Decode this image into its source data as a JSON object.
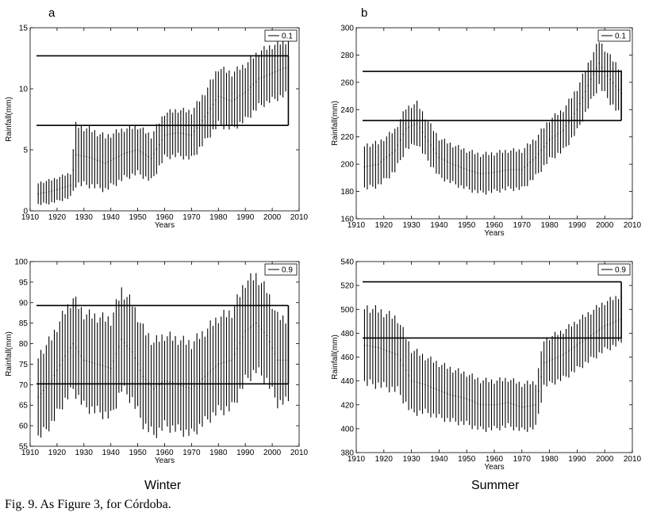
{
  "figure": {
    "letters": [
      "a",
      "b"
    ],
    "seasons": [
      "Winter",
      "Summer"
    ],
    "caption": "Fig. 9. As Figure 3, for Córdoba."
  },
  "chart_data": [
    {
      "type": "line",
      "panel": "winter-0.1",
      "xlabel": "Years",
      "ylabel": "Rainfall(mm)",
      "xlim": [
        1910,
        2010
      ],
      "ylim": [
        0,
        15
      ],
      "xticks": [
        1910,
        1920,
        1930,
        1940,
        1950,
        1960,
        1970,
        1980,
        1990,
        2000,
        2010
      ],
      "yticks": [
        0,
        5,
        10,
        15
      ],
      "legend": "0.1",
      "legend_position": "top-right",
      "band": {
        "lower": 7.0,
        "upper": 12.7,
        "x_end": 2006
      },
      "years": [
        1913,
        2006
      ],
      "center_knots": [
        [
          1913,
          1.4
        ],
        [
          1918,
          1.6
        ],
        [
          1925,
          2.1
        ],
        [
          1927,
          4.6
        ],
        [
          1932,
          4.4
        ],
        [
          1938,
          3.9
        ],
        [
          1945,
          4.7
        ],
        [
          1950,
          5.0
        ],
        [
          1955,
          4.3
        ],
        [
          1960,
          6.2
        ],
        [
          1965,
          6.4
        ],
        [
          1970,
          6.2
        ],
        [
          1975,
          7.7
        ],
        [
          1980,
          9.4
        ],
        [
          1985,
          9.0
        ],
        [
          1990,
          9.7
        ],
        [
          1995,
          10.8
        ],
        [
          2000,
          11.3
        ],
        [
          2006,
          11.8
        ]
      ],
      "halfwidth_knots": [
        [
          1913,
          0.9
        ],
        [
          1925,
          1.0
        ],
        [
          1927,
          2.4
        ],
        [
          1950,
          1.9
        ],
        [
          1960,
          1.8
        ],
        [
          1975,
          2.0
        ],
        [
          1980,
          2.3
        ],
        [
          2006,
          2.2
        ]
      ]
    },
    {
      "type": "line",
      "panel": "summer-0.1",
      "xlabel": "Years",
      "ylabel": "Rainfall(mm)",
      "xlim": [
        1910,
        2010
      ],
      "ylim": [
        160,
        300
      ],
      "xticks": [
        1910,
        1920,
        1930,
        1940,
        1950,
        1960,
        1970,
        1980,
        1990,
        2000,
        2010
      ],
      "yticks": [
        160,
        180,
        200,
        220,
        240,
        260,
        280,
        300
      ],
      "legend": "0.1",
      "legend_position": "top-right",
      "band": {
        "lower": 232,
        "upper": 268,
        "x_end": 2006
      },
      "years": [
        1913,
        2006
      ],
      "center_knots": [
        [
          1913,
          198
        ],
        [
          1918,
          200
        ],
        [
          1924,
          210
        ],
        [
          1928,
          226
        ],
        [
          1932,
          230
        ],
        [
          1935,
          220
        ],
        [
          1940,
          205
        ],
        [
          1945,
          200
        ],
        [
          1950,
          196
        ],
        [
          1955,
          193
        ],
        [
          1960,
          194
        ],
        [
          1965,
          196
        ],
        [
          1970,
          196
        ],
        [
          1975,
          205
        ],
        [
          1980,
          218
        ],
        [
          1985,
          225
        ],
        [
          1990,
          240
        ],
        [
          1995,
          262
        ],
        [
          1998,
          274
        ],
        [
          2002,
          262
        ],
        [
          2006,
          252
        ]
      ],
      "halfwidth_knots": [
        [
          1913,
          16
        ],
        [
          1925,
          15
        ],
        [
          1930,
          15
        ],
        [
          1940,
          14
        ],
        [
          1960,
          14
        ],
        [
          1975,
          14
        ],
        [
          1985,
          15
        ],
        [
          1995,
          16
        ],
        [
          2006,
          17
        ]
      ]
    },
    {
      "type": "line",
      "panel": "winter-0.9",
      "xlabel": "Years",
      "ylabel": "Rainfall(mm)",
      "xlim": [
        1910,
        2010
      ],
      "ylim": [
        55,
        100
      ],
      "xticks": [
        1910,
        1920,
        1930,
        1940,
        1950,
        1960,
        1970,
        1980,
        1990,
        2000,
        2010
      ],
      "yticks": [
        55,
        60,
        65,
        70,
        75,
        80,
        85,
        90,
        95,
        100
      ],
      "legend": "0.9",
      "legend_position": "top-right",
      "band": {
        "lower": 70.2,
        "upper": 89.3,
        "x_end": 2006
      },
      "years": [
        1913,
        2006
      ],
      "center_knots": [
        [
          1913,
          67
        ],
        [
          1918,
          71
        ],
        [
          1922,
          76
        ],
        [
          1926,
          80
        ],
        [
          1930,
          76
        ],
        [
          1935,
          75
        ],
        [
          1940,
          74
        ],
        [
          1944,
          81
        ],
        [
          1948,
          78
        ],
        [
          1952,
          72
        ],
        [
          1956,
          69
        ],
        [
          1960,
          71
        ],
        [
          1965,
          70
        ],
        [
          1970,
          69
        ],
        [
          1975,
          72
        ],
        [
          1980,
          75
        ],
        [
          1985,
          76
        ],
        [
          1990,
          83
        ],
        [
          1994,
          85
        ],
        [
          1998,
          82
        ],
        [
          2002,
          76
        ],
        [
          2006,
          76
        ]
      ],
      "halfwidth_knots": [
        [
          1913,
          10
        ],
        [
          1925,
          11
        ],
        [
          1944,
          12
        ],
        [
          1960,
          11
        ],
        [
          1975,
          11
        ],
        [
          1990,
          12
        ],
        [
          2006,
          10
        ]
      ]
    },
    {
      "type": "line",
      "panel": "summer-0.9",
      "xlabel": "Years",
      "ylabel": "Rainfall(mm)",
      "xlim": [
        1910,
        2010
      ],
      "ylim": [
        380,
        540
      ],
      "xticks": [
        1910,
        1920,
        1930,
        1940,
        1950,
        1960,
        1970,
        1980,
        1990,
        2000,
        2010
      ],
      "yticks": [
        380,
        400,
        420,
        440,
        460,
        480,
        500,
        520,
        540
      ],
      "legend": "0.9",
      "legend_position": "top-right",
      "band": {
        "lower": 476,
        "upper": 523,
        "x_end": 2006
      },
      "years": [
        1913,
        2006
      ],
      "center_knots": [
        [
          1913,
          470
        ],
        [
          1918,
          468
        ],
        [
          1925,
          462
        ],
        [
          1930,
          440
        ],
        [
          1935,
          437
        ],
        [
          1940,
          432
        ],
        [
          1945,
          428
        ],
        [
          1950,
          425
        ],
        [
          1955,
          420
        ],
        [
          1960,
          420
        ],
        [
          1965,
          422
        ],
        [
          1970,
          418
        ],
        [
          1975,
          420
        ],
        [
          1978,
          455
        ],
        [
          1985,
          462
        ],
        [
          1990,
          470
        ],
        [
          1995,
          478
        ],
        [
          2000,
          486
        ],
        [
          2006,
          492
        ]
      ],
      "halfwidth_knots": [
        [
          1913,
          32
        ],
        [
          1925,
          30
        ],
        [
          1935,
          23
        ],
        [
          1950,
          21
        ],
        [
          1960,
          20
        ],
        [
          1975,
          19
        ],
        [
          1985,
          20
        ],
        [
          1995,
          20
        ],
        [
          2006,
          20
        ]
      ]
    }
  ]
}
